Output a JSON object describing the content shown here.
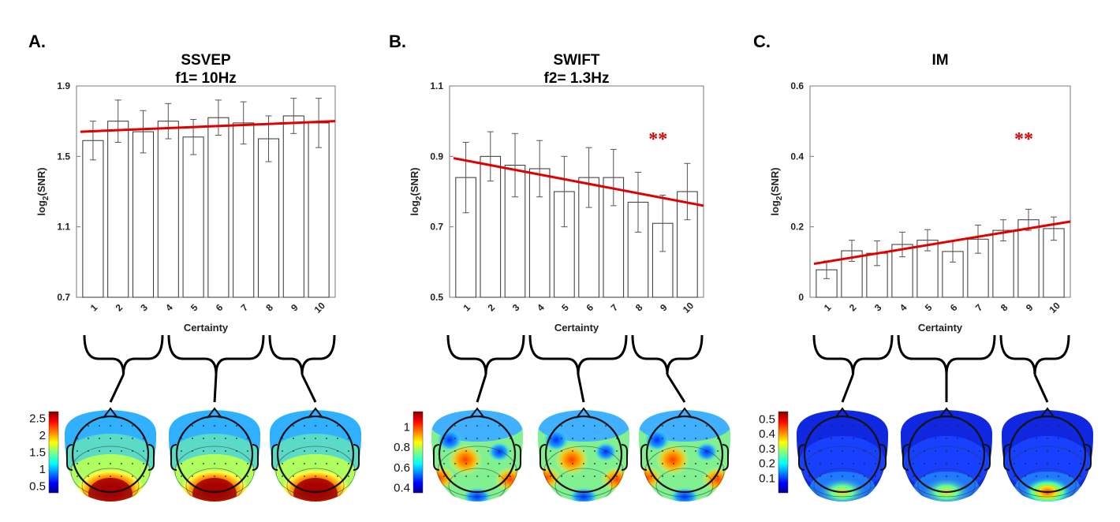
{
  "panels": [
    {
      "letter": "A.",
      "title_lines": [
        "SSVEP",
        "f1= 10Hz"
      ],
      "chart_data": {
        "type": "bar",
        "categories": [
          "1",
          "2",
          "3",
          "4",
          "5",
          "6",
          "7",
          "8",
          "9",
          "10"
        ],
        "values": [
          1.59,
          1.7,
          1.64,
          1.7,
          1.61,
          1.72,
          1.69,
          1.6,
          1.73,
          1.69
        ],
        "error": [
          0.11,
          0.12,
          0.12,
          0.1,
          0.1,
          0.1,
          0.12,
          0.13,
          0.1,
          0.14
        ],
        "fit_line": [
          1.64,
          1.7
        ],
        "xlabel": "Certainty",
        "ylabel": "log2(SNR)",
        "ylim": [
          0.7,
          1.9
        ],
        "yticks": [
          "0.7",
          "1.1",
          "1.5",
          "1.9"
        ],
        "significance": "",
        "fit_color": "#e00000",
        "grid": false
      },
      "colorbar": {
        "ticks": [
          "2.5",
          "2",
          "1.5",
          "1",
          "0.5"
        ],
        "range": [
          0.3,
          2.7
        ]
      },
      "topo_style": "ssvep"
    },
    {
      "letter": "B.",
      "title_lines": [
        "SWIFT",
        "f2= 1.3Hz"
      ],
      "chart_data": {
        "type": "bar",
        "categories": [
          "1",
          "2",
          "3",
          "4",
          "5",
          "6",
          "7",
          "8",
          "9",
          "10"
        ],
        "values": [
          0.84,
          0.9,
          0.875,
          0.865,
          0.8,
          0.84,
          0.84,
          0.77,
          0.71,
          0.8
        ],
        "error": [
          0.1,
          0.07,
          0.09,
          0.08,
          0.1,
          0.085,
          0.08,
          0.085,
          0.08,
          0.08
        ],
        "fit_line": [
          0.895,
          0.76
        ],
        "xlabel": "Certainty",
        "ylabel": "log2(SNR)",
        "ylim": [
          0.5,
          1.1
        ],
        "yticks": [
          "0.5",
          "0.7",
          "0.9",
          "1.1"
        ],
        "significance": "**",
        "fit_color": "#e00000",
        "grid": false
      },
      "colorbar": {
        "ticks": [
          "1",
          "0.8",
          "0.6",
          "0.4"
        ],
        "range": [
          0.35,
          1.15
        ]
      },
      "topo_style": "swift"
    },
    {
      "letter": "C.",
      "title_lines": [
        "IM"
      ],
      "chart_data": {
        "type": "bar",
        "categories": [
          "1",
          "2",
          "3",
          "4",
          "5",
          "6",
          "7",
          "8",
          "9",
          "10"
        ],
        "values": [
          0.078,
          0.132,
          0.125,
          0.15,
          0.162,
          0.13,
          0.165,
          0.19,
          0.22,
          0.195
        ],
        "error": [
          0.025,
          0.03,
          0.035,
          0.035,
          0.03,
          0.03,
          0.04,
          0.03,
          0.03,
          0.033
        ],
        "fit_line": [
          0.095,
          0.215
        ],
        "xlabel": "Certainty",
        "ylabel": "log2(SNR)",
        "ylim": [
          0,
          0.6
        ],
        "yticks": [
          "0",
          "0.2",
          "0.4",
          "0.6"
        ],
        "significance": "**",
        "fit_color": "#e00000",
        "grid": false
      },
      "colorbar": {
        "ticks": [
          "0.5",
          "0.4",
          "0.3",
          "0.2",
          "0.1"
        ],
        "range": [
          0.0,
          0.55
        ]
      },
      "topo_style": "im"
    }
  ]
}
